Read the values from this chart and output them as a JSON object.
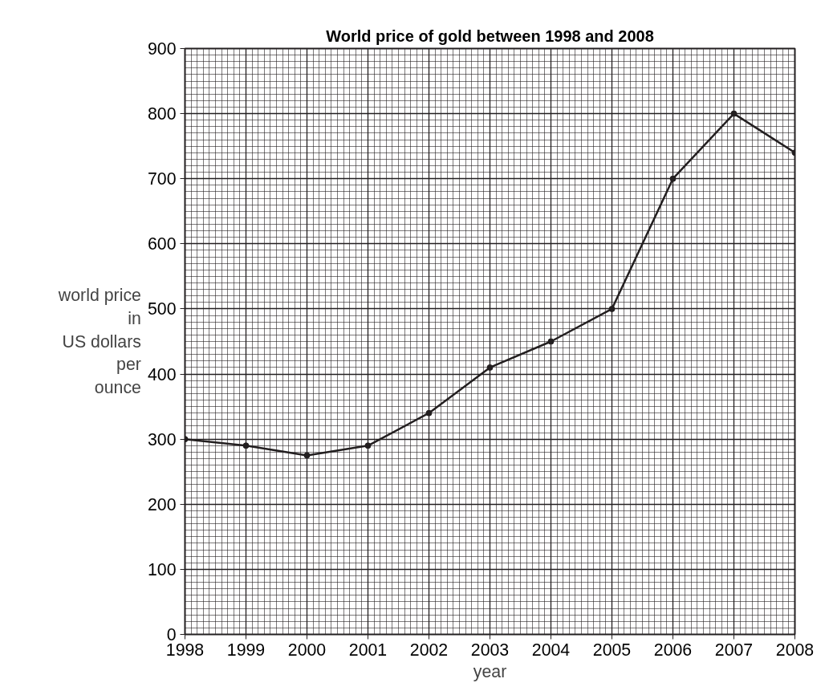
{
  "chart_data": {
    "type": "line",
    "title": "World price of gold between 1998 and 2008",
    "xlabel": "year",
    "ylabel": "world price\nin\nUS dollars\nper\nounce",
    "x": [
      1998,
      1999,
      2000,
      2001,
      2002,
      2003,
      2004,
      2005,
      2006,
      2007,
      2008
    ],
    "series": [
      {
        "color": "#231f20",
        "values": [
          300,
          290,
          275,
          290,
          340,
          410,
          450,
          500,
          700,
          800,
          740
        ]
      }
    ],
    "xlim": [
      1998,
      2008
    ],
    "ylim": [
      0,
      900
    ],
    "xticks": [
      1998,
      1999,
      2000,
      2001,
      2002,
      2003,
      2004,
      2005,
      2006,
      2007,
      2008
    ],
    "yticks": [
      0,
      100,
      200,
      300,
      400,
      500,
      600,
      700,
      800,
      900
    ],
    "grid": true,
    "marker": "circle",
    "line_style": "solid"
  }
}
